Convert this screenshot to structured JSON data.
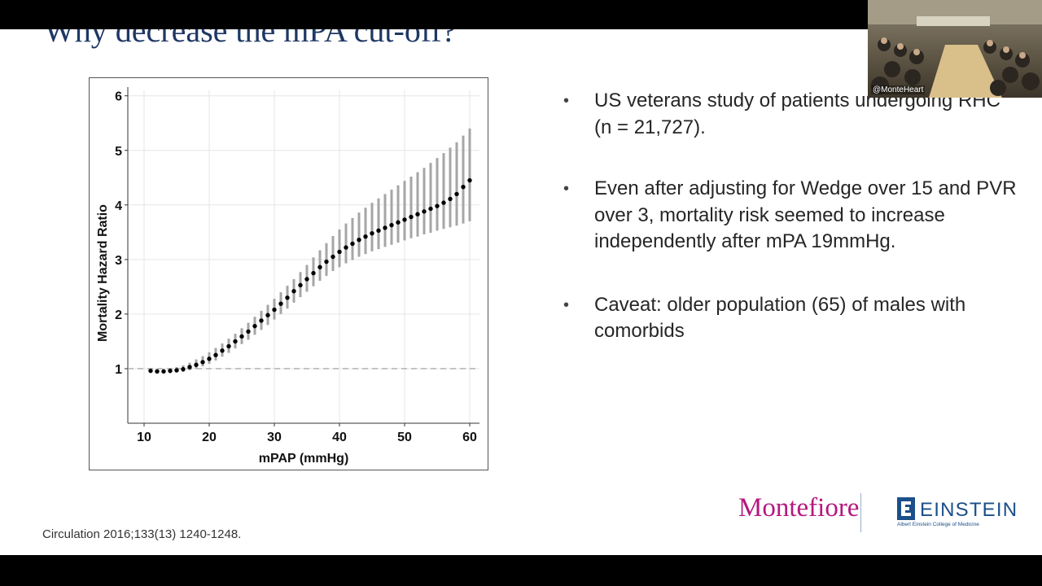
{
  "slide": {
    "title": "Why decrease the mPA cut-off?",
    "bullets": [
      "US veterans study of patients undergoing RHC (n = 21,727).",
      "Even after adjusting for Wedge over 15 and PVR over 3, mortality risk seemed to increase independently after mPA 19mmHg.",
      "Caveat: older population (65) of males with comorbids"
    ],
    "bullet_glyph": "•",
    "citation": "Circulation 2016;133(13) 1240-1248.",
    "logos": {
      "montefiore": "Montefiore",
      "einstein": "EINSTEIN",
      "einstein_sub": "Albert Einstein College of Medicine"
    }
  },
  "video": {
    "handle": "@MonteHeart"
  },
  "colors": {
    "title": "#1f3864",
    "montefiore": "#b5177f",
    "einstein": "#1b4f8a"
  },
  "chart_data": {
    "type": "scatter",
    "xlabel": "mPAP (mmHg)",
    "ylabel": "Mortality Hazard Ratio",
    "xlim": [
      10,
      60
    ],
    "ylim": [
      0,
      6
    ],
    "xticks": [
      10,
      20,
      30,
      40,
      50,
      60
    ],
    "yticks": [
      1,
      2,
      3,
      4,
      5,
      6
    ],
    "reference_line": 1,
    "grid": true,
    "series": [
      {
        "x": [
          11,
          12,
          13,
          14,
          15,
          16,
          17,
          18,
          19,
          20,
          21,
          22,
          23,
          24,
          25,
          26,
          27,
          28,
          29,
          30,
          31,
          32,
          33,
          34,
          35,
          36,
          37,
          38,
          39,
          40,
          41,
          42,
          43,
          44,
          45,
          46,
          47,
          48,
          49,
          50,
          51,
          52,
          53,
          54,
          55,
          56,
          57,
          58,
          59,
          60
        ],
        "y": [
          0.96,
          0.95,
          0.95,
          0.96,
          0.97,
          0.99,
          1.03,
          1.07,
          1.12,
          1.18,
          1.25,
          1.33,
          1.41,
          1.5,
          1.59,
          1.68,
          1.78,
          1.88,
          1.98,
          2.08,
          2.19,
          2.3,
          2.42,
          2.53,
          2.64,
          2.75,
          2.86,
          2.96,
          3.05,
          3.14,
          3.22,
          3.29,
          3.36,
          3.42,
          3.48,
          3.53,
          3.58,
          3.63,
          3.68,
          3.73,
          3.78,
          3.83,
          3.88,
          3.93,
          3.98,
          4.04,
          4.11,
          4.2,
          4.33,
          4.45
        ],
        "lower": [
          0.93,
          0.92,
          0.92,
          0.92,
          0.93,
          0.94,
          0.97,
          1.0,
          1.04,
          1.09,
          1.15,
          1.22,
          1.29,
          1.37,
          1.45,
          1.53,
          1.62,
          1.71,
          1.8,
          1.9,
          2.0,
          2.1,
          2.21,
          2.31,
          2.41,
          2.51,
          2.61,
          2.7,
          2.79,
          2.86,
          2.93,
          2.99,
          3.05,
          3.1,
          3.15,
          3.19,
          3.23,
          3.27,
          3.31,
          3.35,
          3.39,
          3.42,
          3.46,
          3.49,
          3.53,
          3.56,
          3.59,
          3.62,
          3.66,
          3.7
        ],
        "upper": [
          0.99,
          0.99,
          0.99,
          1.01,
          1.03,
          1.06,
          1.11,
          1.17,
          1.23,
          1.3,
          1.38,
          1.46,
          1.55,
          1.64,
          1.74,
          1.84,
          1.95,
          2.06,
          2.17,
          2.28,
          2.4,
          2.52,
          2.64,
          2.77,
          2.9,
          3.04,
          3.17,
          3.3,
          3.43,
          3.55,
          3.66,
          3.76,
          3.86,
          3.95,
          4.04,
          4.12,
          4.2,
          4.28,
          4.36,
          4.44,
          4.52,
          4.6,
          4.68,
          4.77,
          4.86,
          4.95,
          5.05,
          5.15,
          5.27,
          5.4
        ]
      }
    ]
  }
}
